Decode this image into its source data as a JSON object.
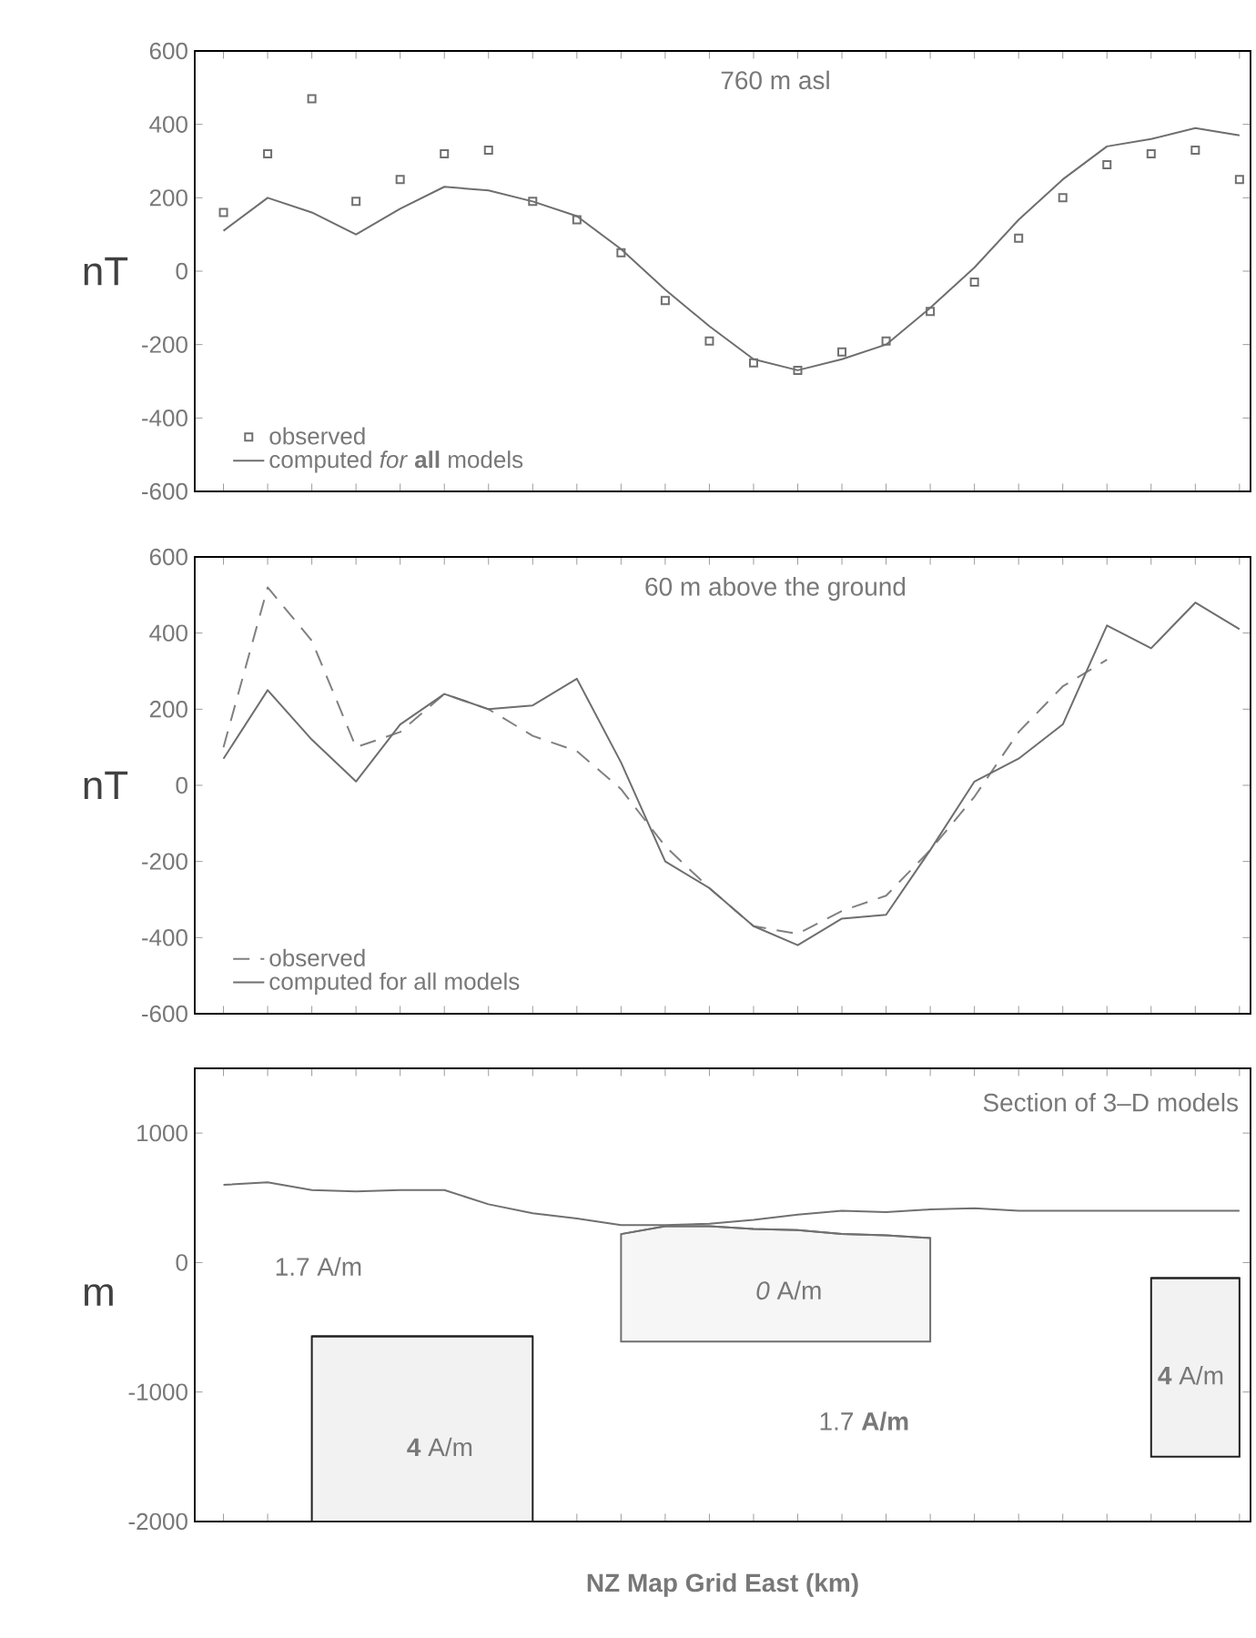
{
  "chart_data": [
    {
      "type": "line",
      "title": "760 m asl",
      "ylabel": "nT",
      "categories": [
        null,
        null,
        null,
        null,
        null,
        null,
        null,
        null,
        null,
        null,
        null,
        null,
        null,
        null,
        null,
        null,
        null,
        null,
        null,
        null,
        null,
        null,
        null,
        null
      ],
      "ylim": [
        -600,
        600
      ],
      "yticks": [
        -600,
        -400,
        -200,
        0,
        200,
        400,
        600
      ],
      "tick_labels": "y",
      "legend": "bottom left",
      "series": [
        {
          "name": "observed",
          "type": "scatter",
          "marker": "square",
          "color": "#707070",
          "values": [
            160,
            320,
            470,
            190,
            250,
            320,
            330,
            190,
            140,
            50,
            -80,
            -190,
            -250,
            -270,
            -220,
            -190,
            -110,
            -30,
            90,
            200,
            290,
            320,
            330,
            250
          ]
        },
        {
          "name": "computed *for* **all** models",
          "type": "line",
          "line_style": "solid",
          "color": "#6e6e6e",
          "values": [
            110,
            200,
            160,
            100,
            170,
            230,
            220,
            190,
            150,
            60,
            -50,
            -150,
            -240,
            -270,
            -240,
            -200,
            -100,
            10,
            140,
            250,
            340,
            360,
            390,
            370
          ]
        }
      ]
    },
    {
      "type": "line",
      "title": "60 m above the ground",
      "ylabel": "nT",
      "categories": [
        null,
        null,
        null,
        null,
        null,
        null,
        null,
        null,
        null,
        null,
        null,
        null,
        null,
        null,
        null,
        null,
        null,
        null,
        null,
        null,
        null,
        null,
        null,
        null
      ],
      "ylim": [
        -600,
        600
      ],
      "yticks": [
        -600,
        -400,
        -200,
        0,
        200,
        400,
        600
      ],
      "tick_labels": "y",
      "legend": "bottom left",
      "series": [
        {
          "name": "observed",
          "type": "line",
          "line_style": "dashed",
          "color": "#808080",
          "values": [
            100,
            520,
            380,
            100,
            140,
            240,
            200,
            130,
            90,
            -10,
            -160,
            -270,
            -370,
            -390,
            -330,
            -290,
            -170,
            -30,
            140,
            260,
            330,
            null,
            null,
            null
          ]
        },
        {
          "name": "computed for all models",
          "type": "line",
          "line_style": "solid",
          "color": "#6e6e6e",
          "values": [
            70,
            250,
            120,
            10,
            160,
            240,
            200,
            210,
            280,
            60,
            -200,
            -270,
            -370,
            -420,
            -350,
            -340,
            -170,
            10,
            70,
            160,
            420,
            360,
            480,
            410
          ]
        }
      ]
    },
    {
      "type": "line",
      "title": "Section of 3–D models",
      "ylabel": "m",
      "xlabel": "NZ Map Grid East (km)",
      "categories": [
        null,
        null,
        null,
        null,
        null,
        null,
        null,
        null,
        null,
        null,
        null,
        null,
        null,
        null,
        null,
        null,
        null,
        null,
        null,
        null,
        null,
        null,
        null,
        null
      ],
      "ylim": [
        -2000,
        1500
      ],
      "yticks": [
        -2000,
        -1000,
        0,
        1000
      ],
      "tick_labels": "y",
      "annotations": [
        "1.7 A/m",
        "*0* A/m",
        "**4** A/m",
        "1.7 **A/m**",
        "**4** A/m"
      ],
      "series": [
        {
          "type": "line",
          "line_style": "solid",
          "color": "#707070",
          "values": [
            600,
            620,
            560,
            550,
            560,
            560,
            450,
            380,
            340,
            290,
            290,
            300,
            330,
            370,
            400,
            390,
            410,
            420,
            400,
            400,
            400,
            400,
            400,
            400
          ]
        },
        {
          "type": "line",
          "line_style": "solid",
          "color": "#707070",
          "values": [
            null,
            null,
            null,
            null,
            null,
            null,
            null,
            null,
            null,
            220,
            280,
            280,
            260,
            250,
            220,
            210,
            190,
            null,
            null,
            null,
            null,
            null,
            null,
            null
          ],
          "upper": [
            null,
            null,
            null,
            null,
            null,
            null,
            null,
            null,
            null,
            220,
            280,
            280,
            260,
            250,
            220,
            210,
            190,
            null,
            null,
            null,
            null,
            null,
            null,
            null
          ],
          "lower": [
            null,
            null,
            null,
            null,
            null,
            null,
            null,
            null,
            null,
            -610,
            -610,
            -610,
            -610,
            -610,
            -610,
            -610,
            -610,
            null,
            null,
            null,
            null,
            null,
            null,
            null
          ]
        },
        {
          "type": "line",
          "line_style": "solid",
          "color": "#202020",
          "values": [
            null,
            null,
            -570,
            -570,
            -570,
            -570,
            -570,
            -570,
            null,
            null,
            null,
            null,
            null,
            null,
            null,
            null,
            null,
            null,
            null,
            null,
            null,
            null,
            null,
            null
          ],
          "upper": [
            null,
            null,
            -570,
            -570,
            -570,
            -570,
            -570,
            -570,
            null,
            null,
            null,
            null,
            null,
            null,
            null,
            null,
            null,
            null,
            null,
            null,
            null,
            null,
            null,
            null
          ],
          "lower": [
            null,
            null,
            -2000,
            -2000,
            -2000,
            -2000,
            -2000,
            -2000,
            null,
            null,
            null,
            null,
            null,
            null,
            null,
            null,
            null,
            null,
            null,
            null,
            null,
            null,
            null,
            null
          ]
        },
        {
          "type": "line",
          "line_style": "solid",
          "color": "#202020",
          "values": [
            null,
            null,
            null,
            null,
            null,
            null,
            null,
            null,
            null,
            null,
            null,
            null,
            null,
            null,
            null,
            null,
            null,
            null,
            null,
            null,
            null,
            -120,
            -120,
            -120
          ],
          "upper": [
            null,
            null,
            null,
            null,
            null,
            null,
            null,
            null,
            null,
            null,
            null,
            null,
            null,
            null,
            null,
            null,
            null,
            null,
            null,
            null,
            null,
            -120,
            -120,
            -120
          ],
          "lower": [
            null,
            null,
            null,
            null,
            null,
            null,
            null,
            null,
            null,
            null,
            null,
            null,
            null,
            null,
            null,
            null,
            null,
            null,
            null,
            null,
            null,
            -1500,
            -1500,
            -1500
          ]
        }
      ]
    }
  ]
}
